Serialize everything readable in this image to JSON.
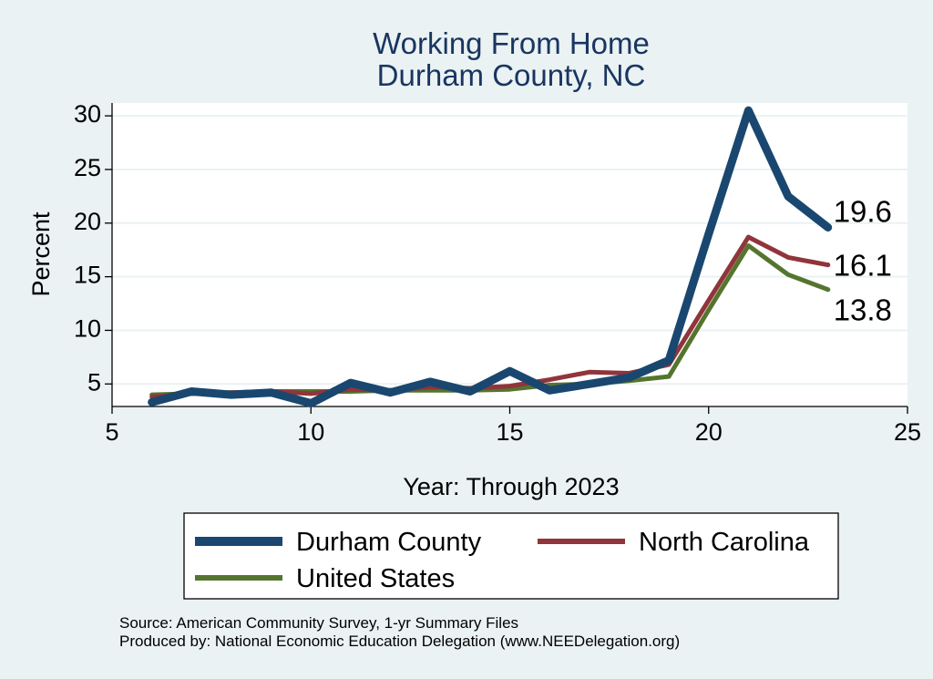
{
  "chart_data": {
    "type": "line",
    "title": [
      "Working From Home",
      "Durham County, NC"
    ],
    "xlabel": "Year: Through 2023",
    "ylabel": "Percent",
    "xlim": [
      5,
      25
    ],
    "ylim": [
      2.9,
      31.2
    ],
    "xticks": [
      5,
      10,
      15,
      20,
      25
    ],
    "yticks": [
      5,
      10,
      15,
      20,
      25,
      30
    ],
    "grid": true,
    "x": [
      6,
      7,
      8,
      9,
      10,
      11,
      12,
      13,
      14,
      15,
      16,
      17,
      18,
      19,
      20,
      21,
      22,
      23
    ],
    "series": [
      {
        "name": "Durham County",
        "color": "#1a476f",
        "width": 9,
        "values": [
          3.3,
          4.3,
          4.0,
          4.2,
          3.2,
          5.1,
          4.2,
          5.2,
          4.3,
          6.2,
          4.4,
          5.0,
          5.6,
          7.2,
          19.0,
          30.5,
          22.5,
          19.6
        ],
        "end_label": "19.6"
      },
      {
        "name": "North Carolina",
        "color": "#90353b",
        "width": 5,
        "values": [
          3.8,
          4.1,
          4.2,
          4.3,
          4.1,
          4.5,
          4.4,
          4.7,
          4.6,
          4.8,
          5.4,
          6.1,
          6.0,
          6.8,
          12.8,
          18.7,
          16.8,
          16.1
        ],
        "end_label": "16.1"
      },
      {
        "name": "United States",
        "color": "#55752f",
        "width": 5,
        "values": [
          4.0,
          4.1,
          4.2,
          4.3,
          4.3,
          4.3,
          4.4,
          4.4,
          4.4,
          4.5,
          4.9,
          5.0,
          5.3,
          5.7,
          11.9,
          17.9,
          15.2,
          13.8
        ],
        "end_label": "13.8"
      }
    ],
    "legend": [
      "Durham County",
      "North Carolina",
      "United States"
    ],
    "legend_position": "bottom"
  },
  "notes": {
    "source": "Source: American Community Survey, 1-yr Summary Files",
    "produced": "Produced by: National Economic Education Delegation (www.NEEDelegation.org)"
  },
  "colors": {
    "background": "#eaf2f3",
    "plot_background": "#ffffff",
    "title": "#1a3561",
    "grid": "#eaf2f3"
  }
}
